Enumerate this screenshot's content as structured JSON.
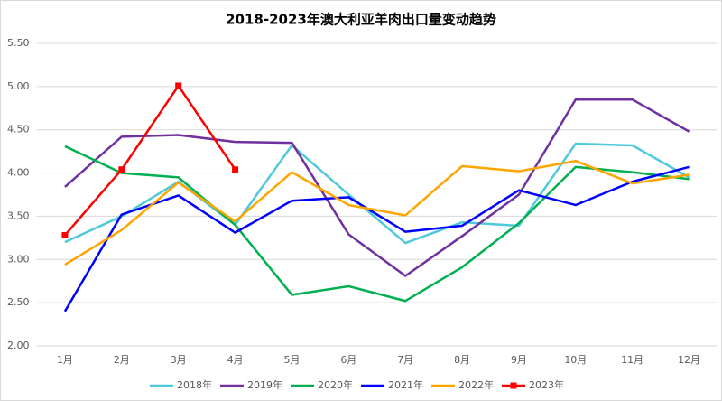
{
  "chart_data": {
    "type": "line",
    "title": "2018-2023年澳大利亚羊肉出口量变动趋势",
    "categories": [
      "1月",
      "2月",
      "3月",
      "4月",
      "5月",
      "6月",
      "7月",
      "8月",
      "9月",
      "10月",
      "11月",
      "12月"
    ],
    "series": [
      {
        "name": "2018年",
        "color": "#4ec9dc",
        "values": [
          3.2,
          3.5,
          3.9,
          3.4,
          4.32,
          3.75,
          3.19,
          3.43,
          3.39,
          4.34,
          4.32,
          3.95
        ]
      },
      {
        "name": "2019年",
        "color": "#7030a0",
        "values": [
          3.84,
          4.42,
          4.44,
          4.36,
          4.35,
          3.29,
          2.81,
          3.27,
          3.75,
          4.85,
          4.85,
          4.48
        ]
      },
      {
        "name": "2020年",
        "color": "#00b050",
        "values": [
          4.31,
          4.0,
          3.95,
          3.4,
          2.59,
          2.69,
          2.52,
          2.91,
          3.42,
          4.07,
          4.01,
          3.93
        ]
      },
      {
        "name": "2021年",
        "color": "#0000ff",
        "values": [
          2.4,
          3.52,
          3.74,
          3.31,
          3.68,
          3.72,
          3.32,
          3.39,
          3.8,
          3.63,
          3.9,
          4.07
        ]
      },
      {
        "name": "2022年",
        "color": "#ffa500",
        "values": [
          2.94,
          3.34,
          3.89,
          3.44,
          4.01,
          3.63,
          3.51,
          4.08,
          4.02,
          4.14,
          3.88,
          3.98
        ]
      },
      {
        "name": "2023年",
        "color": "#ff0000",
        "marker": "square",
        "values": [
          3.28,
          4.04,
          5.01,
          4.04,
          null,
          null,
          null,
          null,
          null,
          null,
          null,
          null
        ]
      }
    ],
    "ylim": [
      2.0,
      5.5
    ],
    "yticks": [
      {
        "value": 2.0,
        "label": "2.00"
      },
      {
        "value": 2.5,
        "label": "2.50"
      },
      {
        "value": 3.0,
        "label": "3.00"
      },
      {
        "value": 3.5,
        "label": "3.50"
      },
      {
        "value": 4.0,
        "label": "4.00"
      },
      {
        "value": 4.5,
        "label": "4.50"
      },
      {
        "value": 5.0,
        "label": "5.00"
      },
      {
        "value": 5.5,
        "label": "5.50"
      }
    ],
    "grid": true,
    "legend": "bottom"
  }
}
